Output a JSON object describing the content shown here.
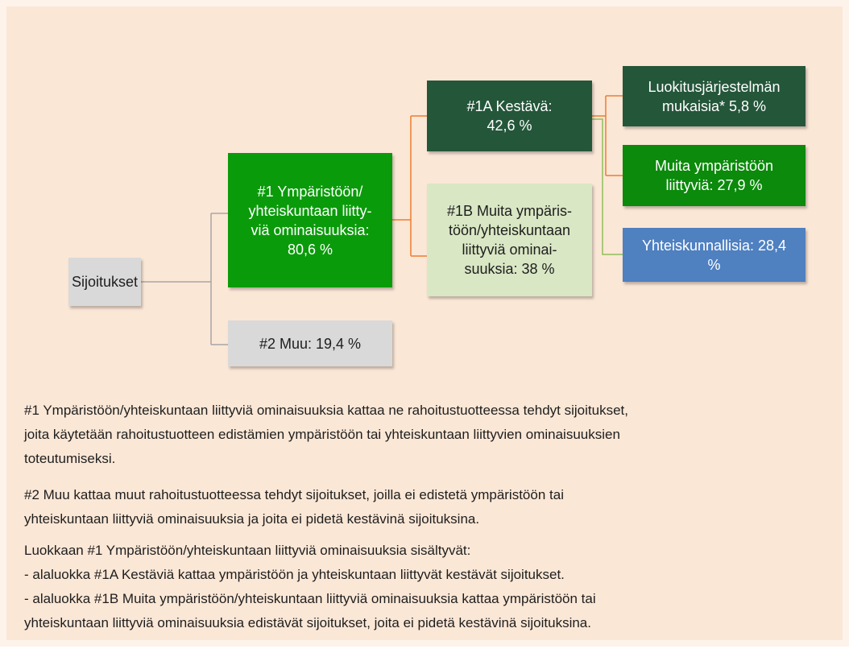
{
  "nodes": [
    {
      "lines": [
        "Sijoitukset"
      ]
    },
    {
      "lines": [
        "#1 Ympäristöön/",
        "yhteiskuntaan liitty-",
        "viä ominaisuuksia:",
        "80,6 %"
      ]
    },
    {
      "lines": [
        "#2 Muu: 19,4 %"
      ]
    },
    {
      "lines": [
        "#1A Kestävä:",
        "42,6 %"
      ]
    },
    {
      "lines": [
        "#1B Muita ympäris-",
        "töön/yhteiskuntaan",
        "liittyviä ominai-",
        "suuksia: 38 %"
      ]
    },
    {
      "lines": [
        "Luokitusjärjestelmän",
        "mukaisia* 5,8 %"
      ]
    },
    {
      "lines": [
        "Muita ympäristöön",
        "liittyviä: 27,9 %"
      ]
    },
    {
      "lines": [
        "Yhteiskunnallisia: 28,4",
        "%"
      ]
    }
  ],
  "paragraphs": [
    {
      "lines": [
        "#1 Ympäristöön/yhteiskuntaan liittyviä ominaisuuksia kattaa ne rahoitustuotteessa tehdyt sijoitukset,",
        "joita käytetään rahoitustuotteen edistämien ympäristöön tai yhteiskuntaan liittyvien ominaisuuksien",
        "toteutumiseksi."
      ]
    },
    {
      "lines": [
        "#2 Muu kattaa muut rahoitustuotteessa tehdyt sijoitukset, joilla ei edistetä ympäristöön tai",
        "yhteiskuntaan liittyviä ominaisuuksia ja joita ei pidetä kestävinä sijoituksina."
      ]
    },
    {
      "lines": [
        "Luokkaan #1 Ympäristöön/yhteiskuntaan liittyviä ominaisuuksia sisältyvät:",
        "- alaluokka #1A Kestäviä kattaa ympäristöön ja yhteiskuntaan liittyvät kestävät sijoitukset.",
        "- alaluokka #1B Muita ympäristöön/yhteiskuntaan liittyviä ominaisuuksia kattaa ympäristöön tai",
        "yhteiskuntaan liittyviä ominaisuuksia edistävät sijoitukset, joita ei pidetä kestävinä sijoituksina."
      ]
    }
  ]
}
